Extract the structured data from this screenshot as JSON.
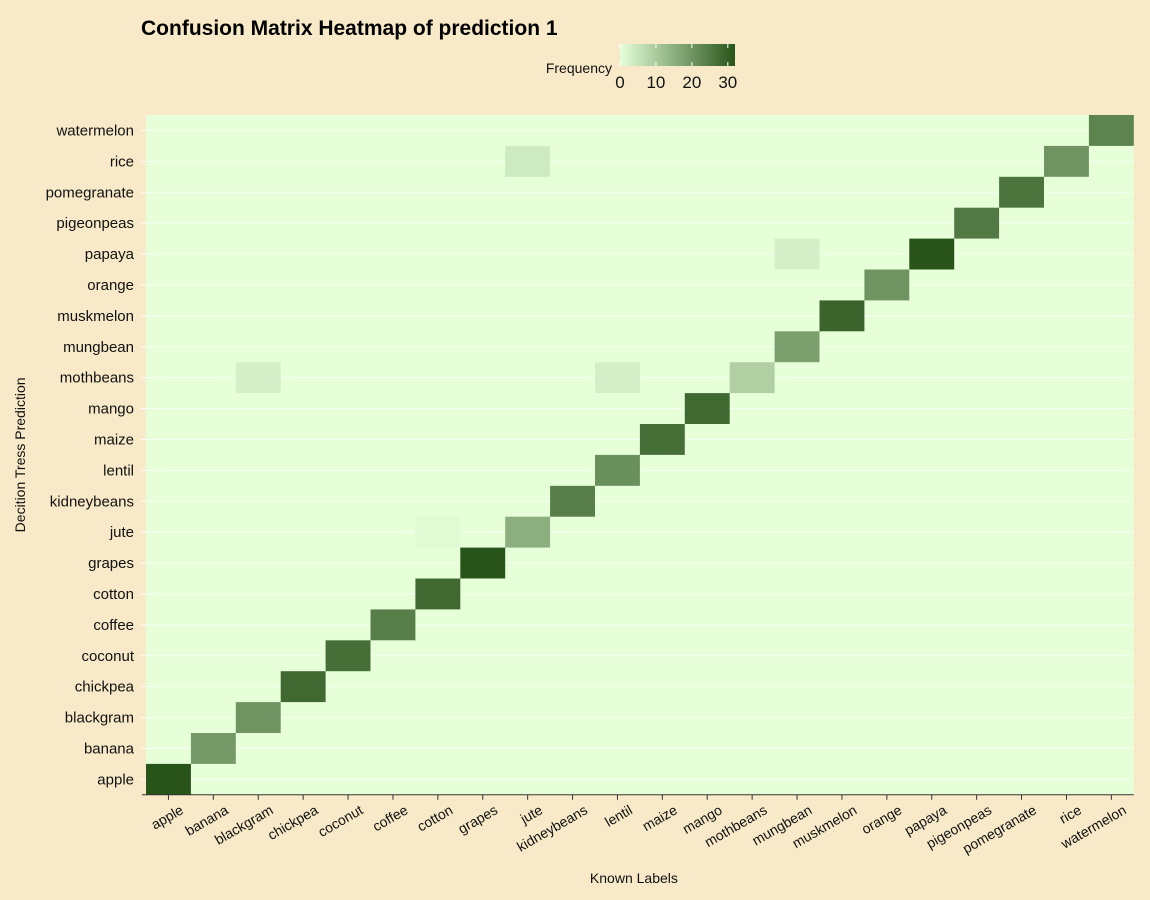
{
  "chart_data": {
    "type": "heatmap",
    "title": "Confusion Matrix Heatmap of prediction 1",
    "xlabel": "Known Labels",
    "ylabel": "Decition Tress Prediction",
    "legend": {
      "title": "Frequency",
      "ticks": [
        0,
        10,
        20,
        30
      ],
      "range": [
        0,
        32
      ],
      "position": "top-center",
      "low_color": "#e6ffd9",
      "high_color": "#285419"
    },
    "x_categories": [
      "apple",
      "banana",
      "blackgram",
      "chickpea",
      "coconut",
      "coffee",
      "cotton",
      "grapes",
      "jute",
      "kidneybeans",
      "lentil",
      "maize",
      "mango",
      "mothbeans",
      "mungbean",
      "muskmelon",
      "orange",
      "papaya",
      "pigeonpeas",
      "pomegranate",
      "rice",
      "watermelon"
    ],
    "y_categories": [
      "apple",
      "banana",
      "blackgram",
      "chickpea",
      "coconut",
      "coffee",
      "cotton",
      "grapes",
      "jute",
      "kidneybeans",
      "lentil",
      "maize",
      "mango",
      "mothbeans",
      "mungbean",
      "muskmelon",
      "orange",
      "papaya",
      "pigeonpeas",
      "pomegranate",
      "rice",
      "watermelon"
    ],
    "cells": [
      {
        "x": "apple",
        "y": "apple",
        "value": 32
      },
      {
        "x": "banana",
        "y": "banana",
        "value": 19
      },
      {
        "x": "blackgram",
        "y": "blackgram",
        "value": 20
      },
      {
        "x": "chickpea",
        "y": "chickpea",
        "value": 28
      },
      {
        "x": "coconut",
        "y": "coconut",
        "value": 27
      },
      {
        "x": "coffee",
        "y": "coffee",
        "value": 24
      },
      {
        "x": "cotton",
        "y": "cotton",
        "value": 28
      },
      {
        "x": "grapes",
        "y": "grapes",
        "value": 32
      },
      {
        "x": "cotton",
        "y": "jute",
        "value": 1
      },
      {
        "x": "jute",
        "y": "jute",
        "value": 15
      },
      {
        "x": "kidneybeans",
        "y": "kidneybeans",
        "value": 24
      },
      {
        "x": "lentil",
        "y": "lentil",
        "value": 21
      },
      {
        "x": "maize",
        "y": "maize",
        "value": 27
      },
      {
        "x": "mango",
        "y": "mango",
        "value": 28
      },
      {
        "x": "blackgram",
        "y": "mothbeans",
        "value": 3
      },
      {
        "x": "lentil",
        "y": "mothbeans",
        "value": 3
      },
      {
        "x": "mothbeans",
        "y": "mothbeans",
        "value": 9
      },
      {
        "x": "mungbean",
        "y": "mungbean",
        "value": 18
      },
      {
        "x": "muskmelon",
        "y": "muskmelon",
        "value": 29
      },
      {
        "x": "orange",
        "y": "orange",
        "value": 20
      },
      {
        "x": "mungbean",
        "y": "papaya",
        "value": 3
      },
      {
        "x": "papaya",
        "y": "papaya",
        "value": 32
      },
      {
        "x": "pigeonpeas",
        "y": "pigeonpeas",
        "value": 25
      },
      {
        "x": "pomegranate",
        "y": "pomegranate",
        "value": 26
      },
      {
        "x": "jute",
        "y": "rice",
        "value": 4
      },
      {
        "x": "rice",
        "y": "rice",
        "value": 20
      },
      {
        "x": "watermelon",
        "y": "watermelon",
        "value": 23
      }
    ]
  }
}
